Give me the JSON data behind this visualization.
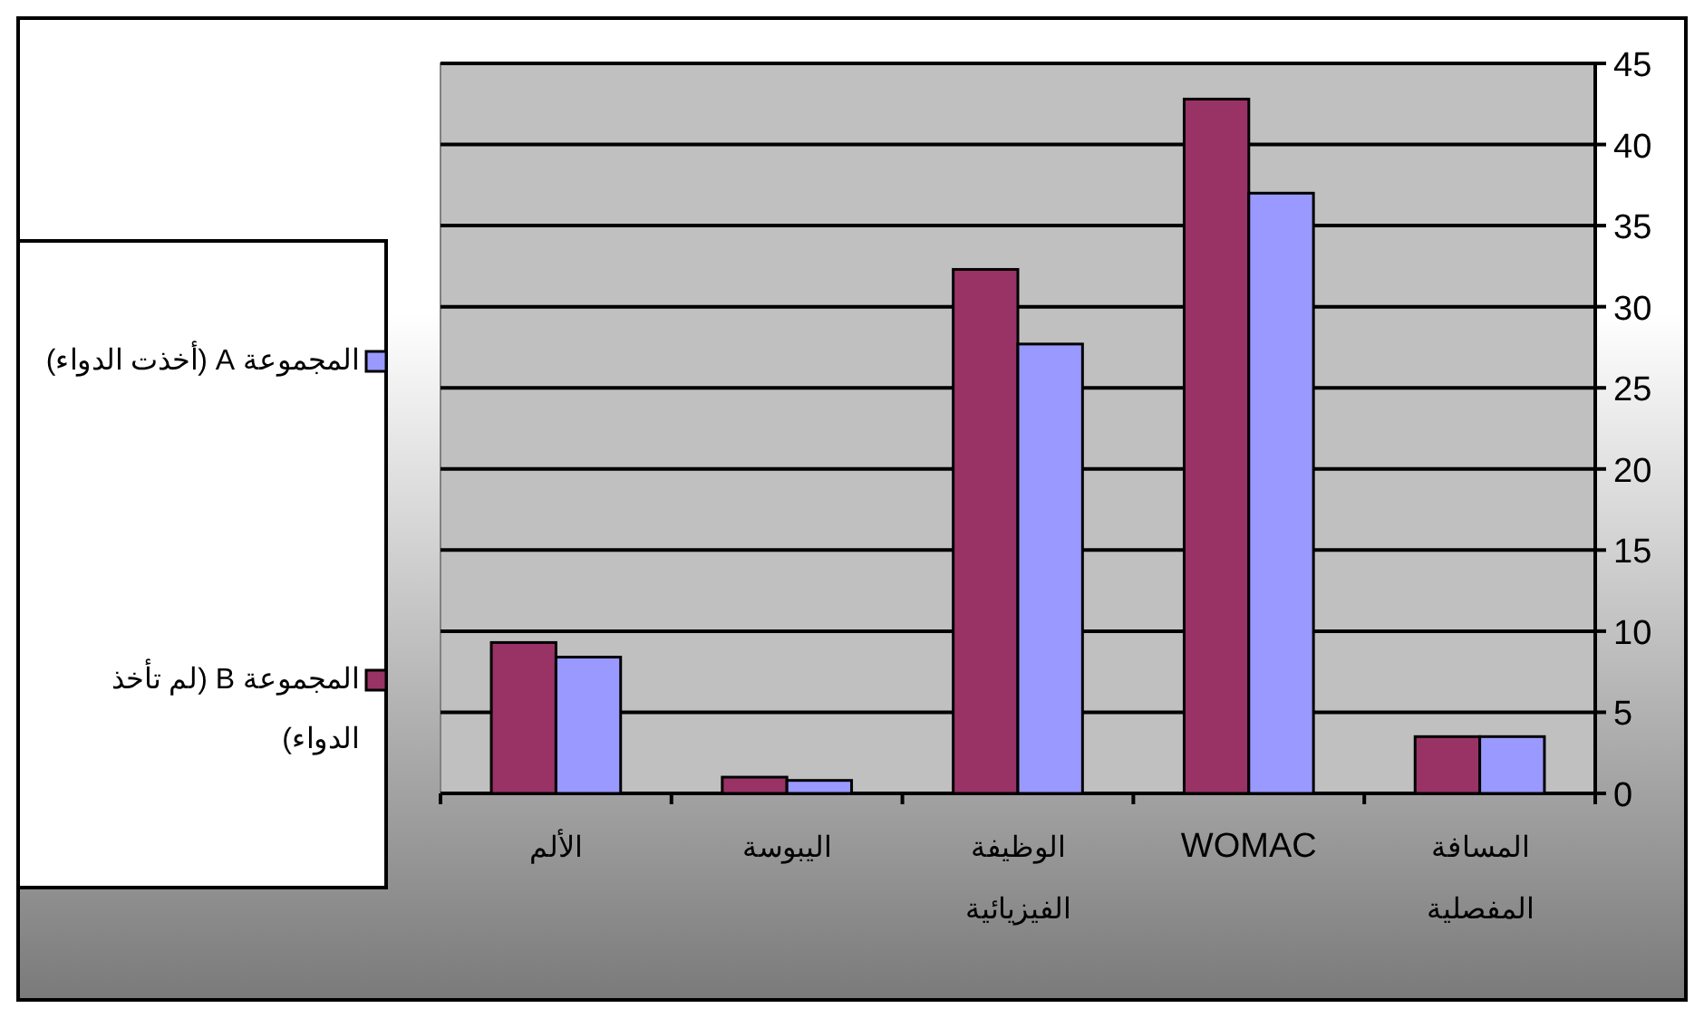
{
  "chart_data": {
    "type": "bar",
    "categories": [
      "الألم",
      "اليبوسة",
      "الوظيفة الفيزيائية",
      "WOMAC",
      "المسافة المفصلية"
    ],
    "series": [
      {
        "name": "المجموعة B (لم تأخذ الدواء)",
        "color": "#993366",
        "values": [
          9.3,
          1.0,
          32.3,
          42.8,
          3.5
        ]
      },
      {
        "name": "المجموعة A (أخذت الدواء)",
        "color": "#9999ff",
        "values": [
          8.4,
          0.8,
          27.7,
          37.0,
          3.5
        ]
      }
    ],
    "ylim": [
      0,
      45
    ],
    "yticks": [
      0,
      5,
      10,
      15,
      20,
      25,
      30,
      35,
      40,
      45
    ],
    "grid": "y",
    "legend": "left"
  }
}
